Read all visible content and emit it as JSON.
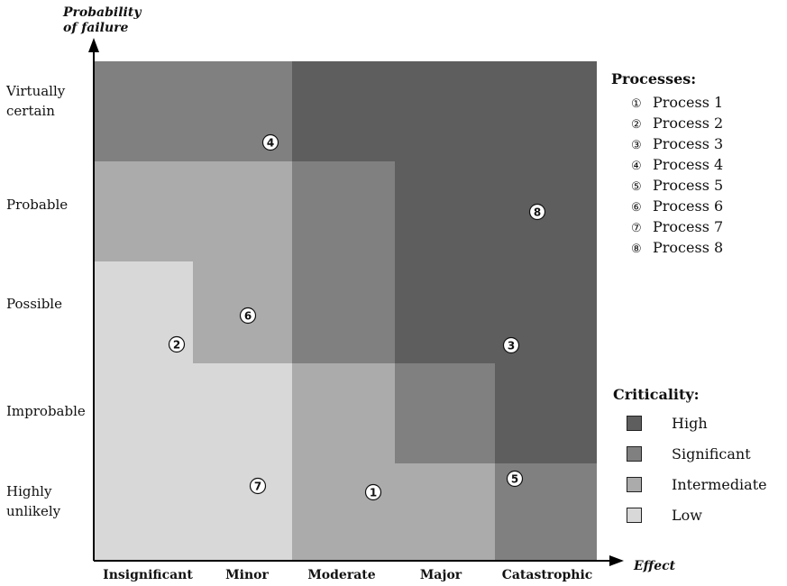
{
  "axes": {
    "y_title_line1": "Probability",
    "y_title_line2": "of failure",
    "x_title": "Effect",
    "y_categories": [
      {
        "line1": "Virtually",
        "line2": "certain"
      },
      {
        "line1": "Probable",
        "line2": ""
      },
      {
        "line1": "Possible",
        "line2": ""
      },
      {
        "line1": "Improbable",
        "line2": ""
      },
      {
        "line1": "Highly",
        "line2": "unlikely"
      }
    ],
    "x_categories": [
      "Insignificant",
      "Minor",
      "Moderate",
      "Major",
      "Catastrophic"
    ]
  },
  "criticality_colors": {
    "High": "#5e5e5e",
    "Significant": "#808080",
    "Intermediate": "#ababab",
    "Low": "#d8d8d8"
  },
  "matrix_rows_top_to_bottom": [
    [
      "Significant",
      "Significant",
      "High",
      "High",
      "High"
    ],
    [
      "Intermediate",
      "Intermediate",
      "Significant",
      "High",
      "High"
    ],
    [
      "Low",
      "Intermediate",
      "Significant",
      "High",
      "High"
    ],
    [
      "Low",
      "Low",
      "Intermediate",
      "Significant",
      "High"
    ],
    [
      "Low",
      "Low",
      "Intermediate",
      "Intermediate",
      "Significant"
    ]
  ],
  "markers": [
    {
      "symbol": "①",
      "label": "1"
    },
    {
      "symbol": "②",
      "label": "2"
    },
    {
      "symbol": "③",
      "label": "3"
    },
    {
      "symbol": "④",
      "label": "4"
    },
    {
      "symbol": "⑤",
      "label": "5"
    },
    {
      "symbol": "⑥",
      "label": "6"
    },
    {
      "symbol": "⑦",
      "label": "7"
    },
    {
      "symbol": "⑧",
      "label": "8"
    }
  ],
  "processes": {
    "title": "Processes:",
    "items": [
      {
        "symbol": "①",
        "name": "Process 1"
      },
      {
        "symbol": "②",
        "name": "Process 2"
      },
      {
        "symbol": "③",
        "name": "Process 3"
      },
      {
        "symbol": "④",
        "name": "Process 4"
      },
      {
        "symbol": "⑤",
        "name": "Process 5"
      },
      {
        "symbol": "⑥",
        "name": "Process 6"
      },
      {
        "symbol": "⑦",
        "name": "Process 7"
      },
      {
        "symbol": "⑧",
        "name": "Process 8"
      }
    ]
  },
  "criticality": {
    "title": "Criticality:",
    "items": [
      {
        "name": "High"
      },
      {
        "name": "Significant"
      },
      {
        "name": "Intermediate"
      },
      {
        "name": "Low"
      }
    ]
  }
}
